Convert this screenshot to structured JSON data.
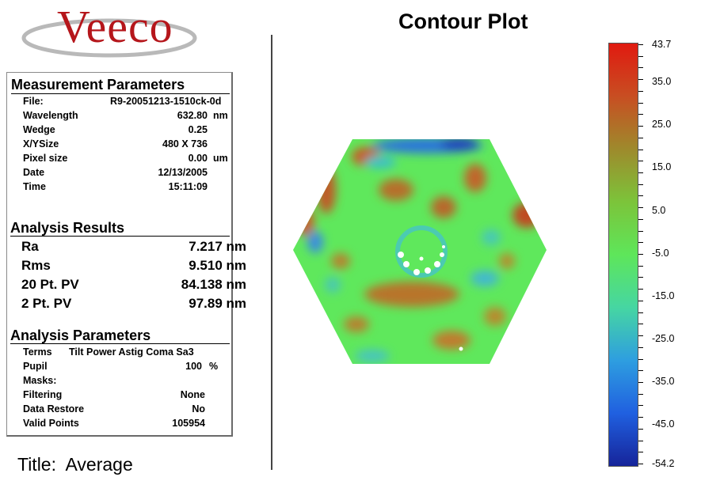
{
  "brand": {
    "name": "Veeco"
  },
  "measurement_parameters": {
    "title": "Measurement Parameters",
    "rows": [
      {
        "label": "File:",
        "value": "R9-20051213-1510ck-0d",
        "unit": ""
      },
      {
        "label": "Wavelength",
        "value": "632.80",
        "unit": "nm"
      },
      {
        "label": "Wedge",
        "value": "0.25",
        "unit": ""
      },
      {
        "label": "X/YSize",
        "value": "480 X 736",
        "unit": ""
      },
      {
        "label": "Pixel size",
        "value": "0.00",
        "unit": "um"
      },
      {
        "label": "Date",
        "value": "12/13/2005",
        "unit": ""
      },
      {
        "label": "Time",
        "value": "15:11:09",
        "unit": ""
      }
    ]
  },
  "analysis_results": {
    "title": "Analysis Results",
    "rows": [
      {
        "label": "Ra",
        "value": "7.217 nm"
      },
      {
        "label": "Rms",
        "value": "9.510 nm"
      },
      {
        "label": "20 Pt. PV",
        "value": "84.138 nm"
      },
      {
        "label": "2 Pt. PV",
        "value": "97.89 nm"
      }
    ]
  },
  "analysis_parameters": {
    "title": "Analysis Parameters",
    "terms_label": "Terms",
    "terms_value": "Tilt Power Astig Coma Sa3",
    "rows": [
      {
        "label": "Pupil",
        "value": "100",
        "unit": "%"
      },
      {
        "label": "Masks:",
        "value": "",
        "unit": ""
      },
      {
        "label": "Filtering",
        "value": "None",
        "unit": ""
      },
      {
        "label": "Data Restore",
        "value": "No",
        "unit": ""
      },
      {
        "label": "Valid Points",
        "value": "105954",
        "unit": ""
      }
    ]
  },
  "footer": {
    "title": "Title:  Average"
  },
  "plot": {
    "title": "Contour Plot",
    "colorbar": {
      "min": -54.2,
      "max": 43.7,
      "labels": [
        "43.7",
        "35.0",
        "25.0",
        "15.0",
        "5.0",
        "-5.0",
        "-15.0",
        "-25.0",
        "-35.0",
        "-45.0",
        "-54.2"
      ],
      "colors": [
        "#e01a10",
        "#c84e22",
        "#9e8a2c",
        "#7cc43a",
        "#5ee65a",
        "#46d6a2",
        "#2e9ee0",
        "#2060e0",
        "#16249a"
      ]
    }
  }
}
